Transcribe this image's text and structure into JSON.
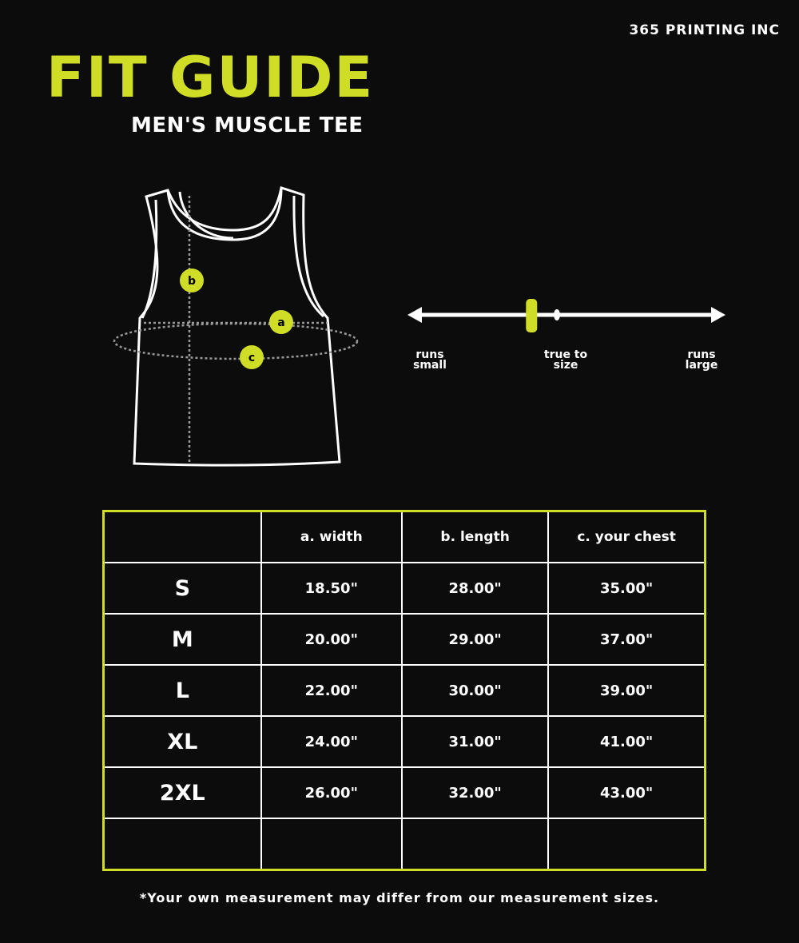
{
  "brand": "365 PRINTING INC",
  "title": "FIT GUIDE",
  "subtitle": "MEN'S MUSCLE TEE",
  "diagram": {
    "markers": [
      "a",
      "b",
      "c"
    ]
  },
  "fit_scale": {
    "left_label": "runs small",
    "center_label": "true to size",
    "right_label": "runs large",
    "value_fraction": 0.39
  },
  "table": {
    "headers": [
      "",
      "a. width",
      "b. length",
      "c. your chest"
    ],
    "rows": [
      [
        "S",
        "18.50\"",
        "28.00\"",
        "35.00\""
      ],
      [
        "M",
        "20.00\"",
        "29.00\"",
        "37.00\""
      ],
      [
        "L",
        "22.00\"",
        "30.00\"",
        "39.00\""
      ],
      [
        "XL",
        "24.00\"",
        "31.00\"",
        "41.00\""
      ],
      [
        "2XL",
        "26.00\"",
        "32.00\"",
        "43.00\""
      ],
      [
        "",
        "",
        "",
        ""
      ]
    ]
  },
  "footnote": "*Your own measurement may differ from our measurement sizes.",
  "colors": {
    "accent": "#cfdd26",
    "background": "#0c0c0c"
  }
}
